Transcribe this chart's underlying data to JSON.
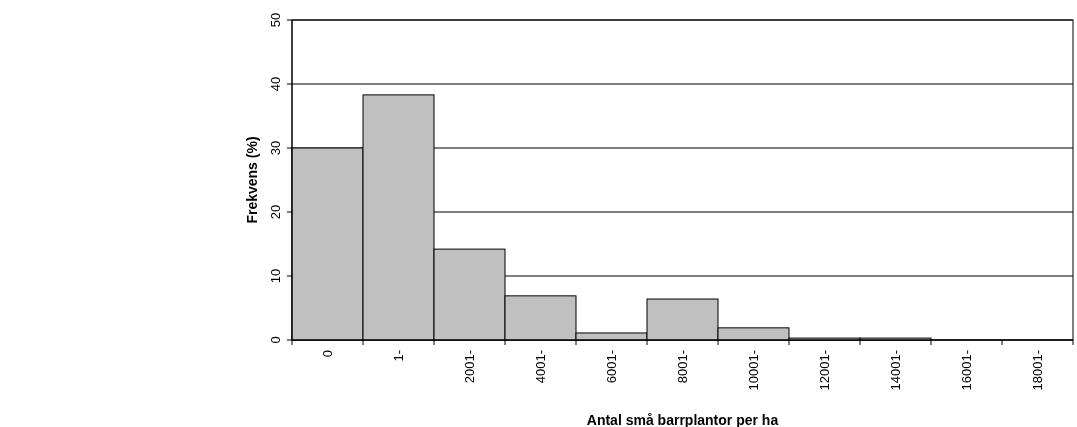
{
  "chart_data": {
    "type": "bar",
    "xlabel": "Antal små barrplantor per ha",
    "ylabel": "Frekvens (%)",
    "categories": [
      "0",
      "1-",
      "2001-",
      "4001-",
      "6001-",
      "8001-",
      "10001-",
      "12001-",
      "14001-",
      "16001-",
      "18001-"
    ],
    "values": [
      30,
      38.3,
      14.2,
      6.9,
      1.1,
      6.4,
      1.9,
      0.3,
      0.3,
      0,
      0
    ],
    "color": "#c0c0c0",
    "ylim": [
      0,
      50
    ],
    "yticks": [
      0,
      10,
      20,
      30,
      40,
      50
    ],
    "grid": "y"
  }
}
